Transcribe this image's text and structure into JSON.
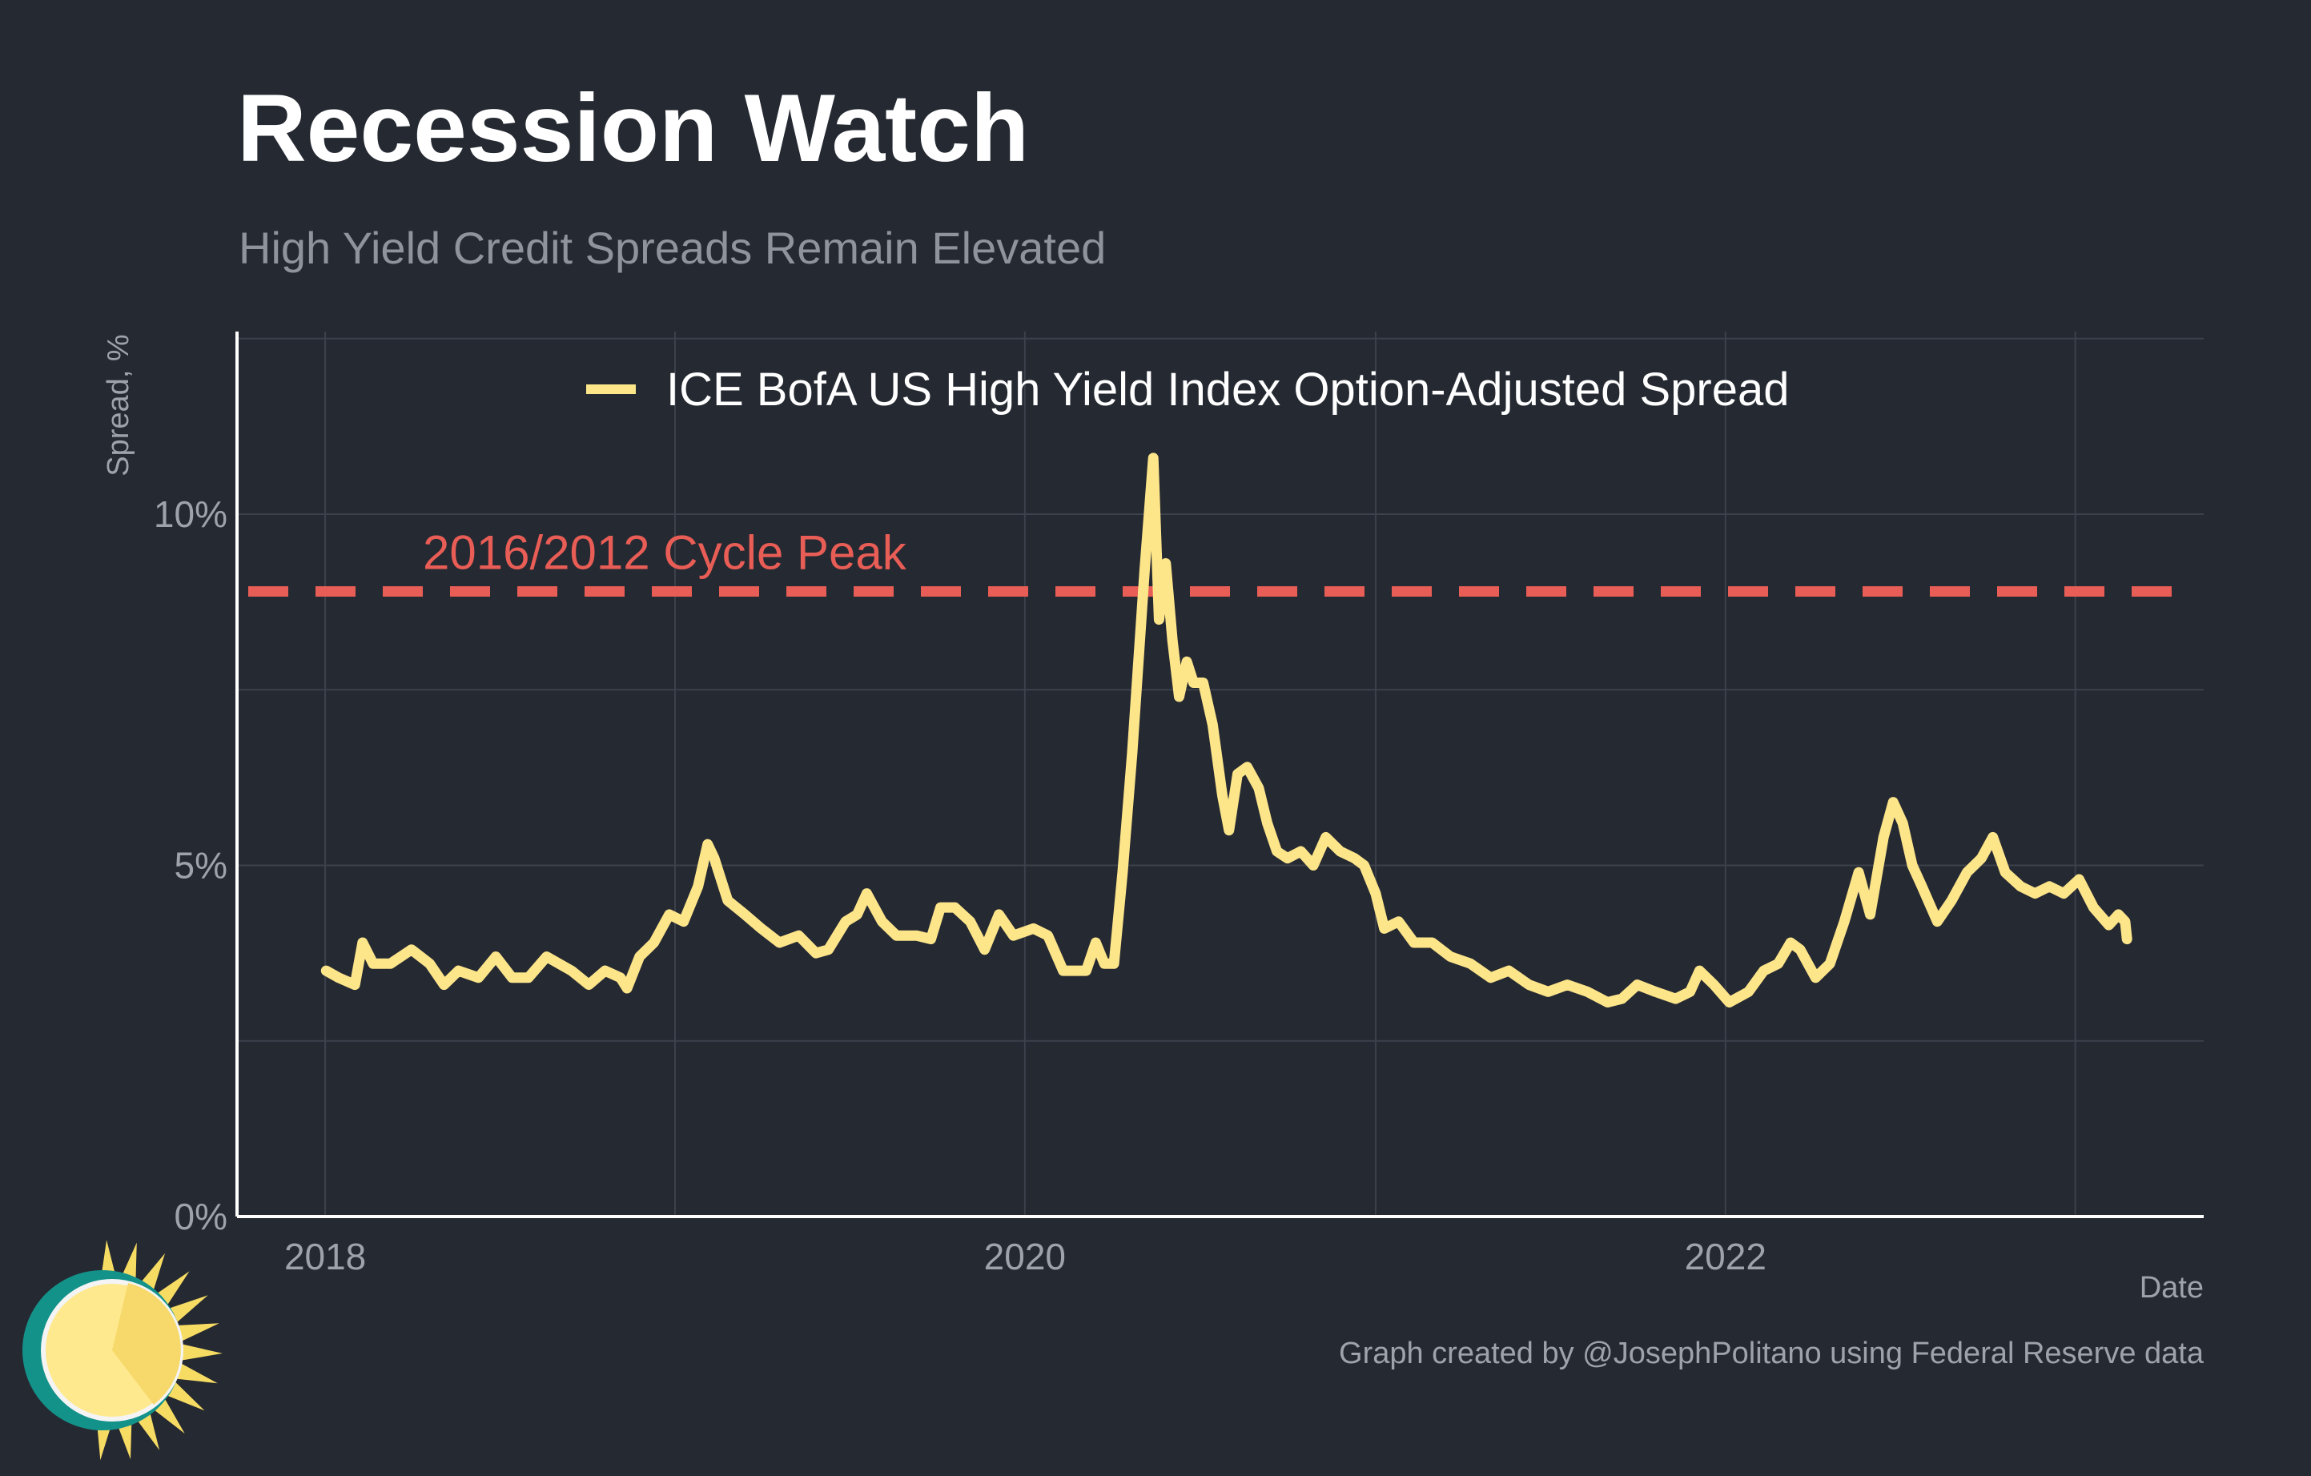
{
  "header": {
    "title": "Recession Watch",
    "subtitle": "High Yield Credit Spreads Remain Elevated"
  },
  "caption": "Graph created by @JosephPolitano using Federal Reserve data",
  "colors": {
    "background": "#252932",
    "series": "#fde58a",
    "reference_line": "#e85d55",
    "grid": "#3c414b",
    "axis": "#ffffff"
  },
  "chart_data": {
    "type": "line",
    "title": "Recession Watch",
    "subtitle": "High Yield Credit Spreads Remain Elevated",
    "xlabel": "Date",
    "ylabel": "Spread, %",
    "xlim": [
      "2017-10-01",
      "2023-05-15"
    ],
    "ylim": [
      0,
      12.6
    ],
    "x_ticks": [
      {
        "value": "2018-01-01",
        "label": "2018"
      },
      {
        "value": "2020-01-01",
        "label": "2020"
      },
      {
        "value": "2022-01-01",
        "label": "2022"
      }
    ],
    "y_ticks": [
      {
        "value": 0,
        "label": "0%"
      },
      {
        "value": 5,
        "label": "5%"
      },
      {
        "value": 10,
        "label": "10%"
      }
    ],
    "grid": true,
    "legend": {
      "position": "top",
      "entries": [
        "ICE BofA US High Yield Index Option-Adjusted Spread"
      ]
    },
    "reference_lines": [
      {
        "y": 8.9,
        "label": "2016/2012 Cycle Peak",
        "style": "dashed"
      }
    ],
    "series": [
      {
        "name": "ICE BofA US High Yield Index Option-Adjusted Spread",
        "points": [
          [
            "2018-01-02",
            3.5
          ],
          [
            "2018-01-15",
            3.4
          ],
          [
            "2018-02-01",
            3.3
          ],
          [
            "2018-02-09",
            3.9
          ],
          [
            "2018-02-20",
            3.6
          ],
          [
            "2018-03-10",
            3.6
          ],
          [
            "2018-04-01",
            3.8
          ],
          [
            "2018-04-20",
            3.6
          ],
          [
            "2018-05-05",
            3.3
          ],
          [
            "2018-05-20",
            3.5
          ],
          [
            "2018-06-10",
            3.4
          ],
          [
            "2018-06-28",
            3.7
          ],
          [
            "2018-07-15",
            3.4
          ],
          [
            "2018-08-01",
            3.4
          ],
          [
            "2018-08-20",
            3.7
          ],
          [
            "2018-09-15",
            3.5
          ],
          [
            "2018-10-03",
            3.3
          ],
          [
            "2018-10-20",
            3.5
          ],
          [
            "2018-11-05",
            3.4
          ],
          [
            "2018-11-12",
            3.25
          ],
          [
            "2018-11-25",
            3.7
          ],
          [
            "2018-12-10",
            3.9
          ],
          [
            "2018-12-26",
            4.3
          ],
          [
            "2019-01-10",
            4.2
          ],
          [
            "2019-01-25",
            4.7
          ],
          [
            "2019-02-04",
            5.3
          ],
          [
            "2019-02-11",
            5.1
          ],
          [
            "2019-02-25",
            4.5
          ],
          [
            "2019-03-15",
            4.3
          ],
          [
            "2019-04-01",
            4.1
          ],
          [
            "2019-04-20",
            3.9
          ],
          [
            "2019-05-10",
            4.0
          ],
          [
            "2019-05-28",
            3.75
          ],
          [
            "2019-06-10",
            3.8
          ],
          [
            "2019-06-28",
            4.2
          ],
          [
            "2019-07-10",
            4.3
          ],
          [
            "2019-07-20",
            4.6
          ],
          [
            "2019-08-05",
            4.2
          ],
          [
            "2019-08-20",
            4.0
          ],
          [
            "2019-09-10",
            4.0
          ],
          [
            "2019-09-25",
            3.95
          ],
          [
            "2019-10-05",
            4.4
          ],
          [
            "2019-10-20",
            4.4
          ],
          [
            "2019-11-05",
            4.2
          ],
          [
            "2019-11-20",
            3.8
          ],
          [
            "2019-12-05",
            4.3
          ],
          [
            "2019-12-20",
            4.0
          ],
          [
            "2020-01-10",
            4.1
          ],
          [
            "2020-01-25",
            4.0
          ],
          [
            "2020-02-10",
            3.5
          ],
          [
            "2020-02-21",
            3.5
          ],
          [
            "2020-03-05",
            3.5
          ],
          [
            "2020-03-15",
            3.9
          ],
          [
            "2020-03-24",
            3.6
          ],
          [
            "2020-04-03",
            3.6
          ],
          [
            "2020-04-12",
            4.9
          ],
          [
            "2020-04-22",
            6.6
          ],
          [
            "2020-05-05",
            9.2
          ],
          [
            "2020-05-14",
            10.8
          ],
          [
            "2020-05-20",
            8.5
          ],
          [
            "2020-05-27",
            9.3
          ],
          [
            "2020-06-03",
            8.2
          ],
          [
            "2020-06-10",
            7.4
          ],
          [
            "2020-06-18",
            7.9
          ],
          [
            "2020-06-25",
            7.6
          ],
          [
            "2020-07-05",
            7.6
          ],
          [
            "2020-07-15",
            7.0
          ],
          [
            "2020-07-25",
            6.0
          ],
          [
            "2020-08-01",
            5.5
          ],
          [
            "2020-08-10",
            6.3
          ],
          [
            "2020-08-20",
            6.4
          ],
          [
            "2020-09-01",
            6.1
          ],
          [
            "2020-09-10",
            5.6
          ],
          [
            "2020-09-20",
            5.2
          ],
          [
            "2020-10-01",
            5.1
          ],
          [
            "2020-10-15",
            5.2
          ],
          [
            "2020-10-28",
            5.0
          ],
          [
            "2020-11-10",
            5.4
          ],
          [
            "2020-11-25",
            5.2
          ],
          [
            "2020-12-10",
            5.1
          ],
          [
            "2020-12-20",
            5.0
          ],
          [
            "2021-01-01",
            4.6
          ],
          [
            "2021-01-10",
            4.1
          ],
          [
            "2021-01-25",
            4.2
          ],
          [
            "2021-02-10",
            3.9
          ],
          [
            "2021-03-01",
            3.9
          ],
          [
            "2021-03-20",
            3.7
          ],
          [
            "2021-04-10",
            3.6
          ],
          [
            "2021-05-01",
            3.4
          ],
          [
            "2021-05-20",
            3.5
          ],
          [
            "2021-06-10",
            3.3
          ],
          [
            "2021-06-30",
            3.2
          ],
          [
            "2021-07-20",
            3.3
          ],
          [
            "2021-08-10",
            3.2
          ],
          [
            "2021-08-31",
            3.05
          ],
          [
            "2021-09-15",
            3.1
          ],
          [
            "2021-10-01",
            3.3
          ],
          [
            "2021-10-20",
            3.2
          ],
          [
            "2021-11-10",
            3.1
          ],
          [
            "2021-11-25",
            3.2
          ],
          [
            "2021-12-05",
            3.5
          ],
          [
            "2021-12-20",
            3.3
          ],
          [
            "2022-01-05",
            3.05
          ],
          [
            "2022-01-25",
            3.2
          ],
          [
            "2022-02-10",
            3.5
          ],
          [
            "2022-02-25",
            3.6
          ],
          [
            "2022-03-10",
            3.9
          ],
          [
            "2022-03-20",
            3.8
          ],
          [
            "2022-04-05",
            3.4
          ],
          [
            "2022-04-20",
            3.6
          ],
          [
            "2022-05-05",
            4.2
          ],
          [
            "2022-05-20",
            4.9
          ],
          [
            "2022-06-01",
            4.3
          ],
          [
            "2022-06-15",
            5.4
          ],
          [
            "2022-06-25",
            5.9
          ],
          [
            "2022-07-05",
            5.6
          ],
          [
            "2022-07-15",
            5.0
          ],
          [
            "2022-07-25",
            4.7
          ],
          [
            "2022-08-10",
            4.2
          ],
          [
            "2022-08-25",
            4.5
          ],
          [
            "2022-09-10",
            4.9
          ],
          [
            "2022-09-25",
            5.1
          ],
          [
            "2022-10-07",
            5.4
          ],
          [
            "2022-10-20",
            4.9
          ],
          [
            "2022-11-05",
            4.7
          ],
          [
            "2022-11-20",
            4.6
          ],
          [
            "2022-12-05",
            4.7
          ],
          [
            "2022-12-20",
            4.6
          ],
          [
            "2023-01-05",
            4.8
          ],
          [
            "2023-01-20",
            4.4
          ],
          [
            "2023-02-05",
            4.15
          ],
          [
            "2023-02-15",
            4.3
          ],
          [
            "2023-02-22",
            4.2
          ],
          [
            "2023-02-24",
            3.95
          ]
        ]
      }
    ]
  }
}
